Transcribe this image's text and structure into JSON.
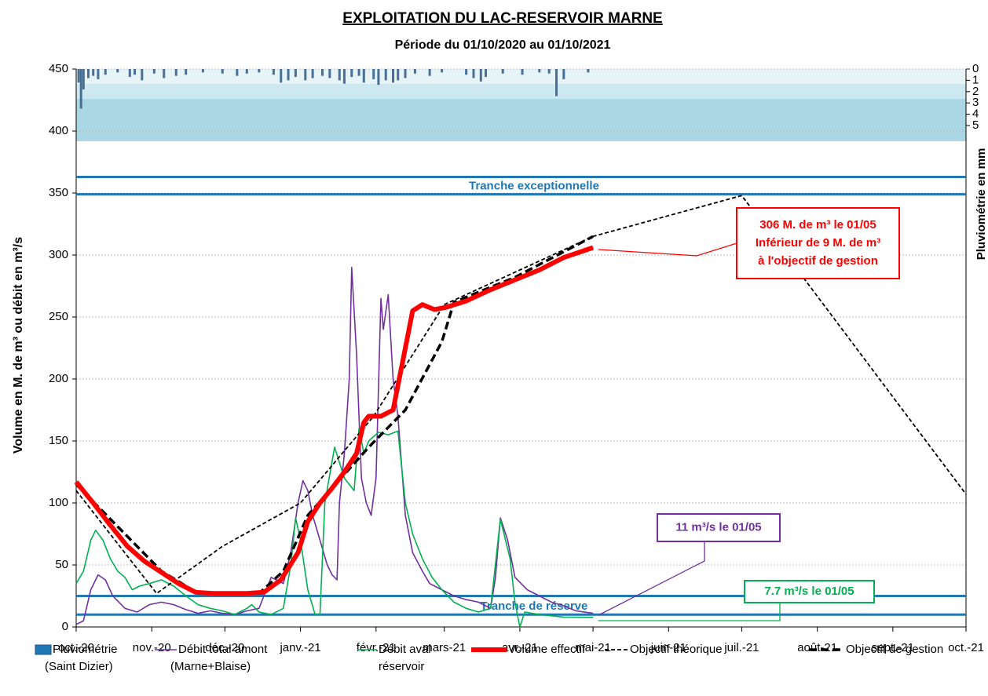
{
  "chart_data": {
    "type": "line",
    "title": "EXPLOITATION  DU  LAC-RESERVOIR  MARNE",
    "subtitle": "Période du 01/10/2020 au 01/10/2021",
    "y_label": "Volume en M. de m³ ou débit en m³/s",
    "y2_label": "Pluviométrie en mm",
    "xlim": [
      0,
      365
    ],
    "xticks": [
      {
        "value": 0,
        "label": "oct.-20"
      },
      {
        "value": 31,
        "label": "nov.-20"
      },
      {
        "value": 61,
        "label": "déc.-20"
      },
      {
        "value": 92,
        "label": "janv.-21"
      },
      {
        "value": 123,
        "label": "févr.-21"
      },
      {
        "value": 151,
        "label": "mars-21"
      },
      {
        "value": 182,
        "label": "avr.-21"
      },
      {
        "value": 212,
        "label": "mai-21"
      },
      {
        "value": 243,
        "label": "juin-21"
      },
      {
        "value": 273,
        "label": "juil.-21"
      },
      {
        "value": 304,
        "label": "août-21"
      },
      {
        "value": 335,
        "label": "sept.-21"
      },
      {
        "value": 365,
        "label": "oct.-21"
      }
    ],
    "ylim": [
      0,
      450
    ],
    "yticks": [
      0,
      50,
      100,
      150,
      200,
      250,
      300,
      350,
      400,
      450
    ],
    "y2lim": [
      0,
      5
    ],
    "y2ticks": [
      0,
      1,
      2,
      3,
      4,
      5
    ],
    "grid": true,
    "reference_lines": [
      {
        "label": "Tranche exceptionnelle",
        "values": [
          349,
          363
        ],
        "color": "#1f77b4"
      },
      {
        "label": "Tranche de réserve",
        "values": [
          10,
          25
        ],
        "color": "#1f77b4"
      }
    ],
    "series": [
      {
        "name": [
          "Pluviométrie",
          "(Saint Dizier)"
        ],
        "kind": "bar",
        "axis": "y2",
        "color": "#4a6f95",
        "x": [
          1,
          2,
          3,
          5,
          7,
          9,
          12,
          17,
          22,
          24,
          27,
          32,
          36,
          41,
          45,
          52,
          60,
          66,
          70,
          75,
          81,
          84,
          87,
          90,
          94,
          97,
          101,
          104,
          108,
          110,
          113,
          116,
          118,
          122,
          124,
          127,
          130,
          132,
          135,
          139,
          145,
          150,
          160,
          163,
          166,
          168,
          175,
          183,
          190,
          194,
          197,
          200,
          210
        ],
        "values": [
          1.2,
          3.5,
          1.8,
          0.8,
          0.6,
          0.9,
          0.5,
          0.3,
          0.7,
          0.5,
          1.0,
          0.4,
          0.8,
          0.6,
          0.5,
          0.3,
          0.4,
          0.6,
          0.4,
          0.3,
          0.5,
          1.2,
          1.0,
          0.7,
          1.0,
          0.8,
          0.6,
          0.8,
          1.0,
          1.3,
          0.7,
          0.6,
          1.2,
          0.9,
          1.4,
          1.0,
          1.2,
          1.0,
          0.8,
          0.4,
          0.6,
          0.3,
          0.5,
          0.8,
          1.1,
          0.7,
          0.4,
          0.5,
          0.3,
          0.4,
          2.4,
          0.9,
          0.3
        ]
      },
      {
        "name": [
          "Débit total amont",
          "(Marne+Blaise)"
        ],
        "kind": "line",
        "color": "#7030a0",
        "width": 1.6,
        "dash": "",
        "x": [
          0,
          3,
          6,
          9,
          12,
          15,
          20,
          25,
          30,
          35,
          40,
          45,
          50,
          55,
          60,
          65,
          70,
          75,
          80,
          85,
          88,
          91,
          93,
          95,
          97,
          100,
          103,
          105,
          107,
          108,
          110,
          112,
          113,
          115,
          117,
          119,
          121,
          123,
          125,
          126,
          128,
          130,
          132,
          135,
          138,
          142,
          145,
          150,
          155,
          160,
          165,
          170,
          172,
          174,
          177,
          180,
          185,
          190,
          195,
          200,
          205,
          212
        ],
        "values": [
          2,
          5,
          30,
          42,
          38,
          25,
          15,
          12,
          18,
          20,
          18,
          14,
          11,
          13,
          11,
          10,
          13,
          15,
          40,
          35,
          60,
          100,
          118,
          110,
          90,
          70,
          50,
          42,
          38,
          100,
          140,
          200,
          290,
          220,
          120,
          100,
          90,
          120,
          265,
          240,
          268,
          200,
          170,
          90,
          60,
          45,
          35,
          30,
          25,
          22,
          20,
          15,
          40,
          88,
          70,
          40,
          30,
          25,
          20,
          17,
          13,
          11
        ]
      },
      {
        "name": [
          "Débit aval",
          "réservoir"
        ],
        "kind": "line",
        "color": "#00b050",
        "width": 1.6,
        "dash": "",
        "x": [
          0,
          3,
          6,
          8,
          11,
          14,
          17,
          20,
          23,
          26,
          30,
          35,
          40,
          45,
          50,
          55,
          60,
          65,
          70,
          72,
          75,
          80,
          85,
          88,
          90,
          92,
          95,
          98,
          100,
          102,
          106,
          110,
          114,
          116,
          118,
          120,
          124,
          128,
          132,
          135,
          138,
          142,
          146,
          150,
          155,
          160,
          165,
          170,
          174,
          178,
          180,
          182,
          184,
          190,
          200,
          212
        ],
        "values": [
          35,
          45,
          70,
          78,
          70,
          55,
          45,
          40,
          30,
          33,
          35,
          38,
          33,
          25,
          18,
          15,
          13,
          10,
          15,
          18,
          12,
          10,
          15,
          50,
          88,
          70,
          30,
          10,
          10,
          100,
          145,
          120,
          110,
          160,
          140,
          150,
          157,
          155,
          158,
          100,
          75,
          55,
          40,
          30,
          20,
          15,
          12,
          15,
          87,
          55,
          20,
          0,
          12,
          10,
          8,
          7.7
        ]
      },
      {
        "name": [
          "Volume effectif"
        ],
        "kind": "line",
        "color": "#ff0000",
        "width": 6,
        "dash": "",
        "x": [
          0,
          7,
          14,
          21,
          28,
          35,
          42,
          49,
          56,
          63,
          70,
          77,
          84,
          91,
          95,
          100,
          105,
          110,
          115,
          118,
          120,
          125,
          130,
          134,
          138,
          142,
          147,
          152,
          160,
          170,
          180,
          190,
          200,
          212
        ],
        "values": [
          117,
          100,
          82,
          65,
          53,
          44,
          35,
          28,
          27,
          27,
          27,
          28,
          38,
          60,
          85,
          100,
          112,
          125,
          140,
          165,
          170,
          170,
          175,
          215,
          255,
          260,
          256,
          258,
          263,
          272,
          280,
          288,
          298,
          306
        ]
      },
      {
        "name": [
          "Objectif théorique"
        ],
        "kind": "line",
        "color": "#000000",
        "width": 1.8,
        "dash": "5 3",
        "x": [
          0,
          33,
          60,
          92,
          122,
          151,
          212,
          273,
          365
        ],
        "values": [
          110,
          27,
          65,
          100,
          170,
          260,
          315,
          348,
          107
        ]
      },
      {
        "name": [
          "Objectif de gestion"
        ],
        "kind": "line",
        "color": "#000000",
        "width": 3.5,
        "dash": "10 5",
        "x": [
          0,
          20,
          35,
          50,
          75,
          85,
          95,
          105,
          120,
          135,
          150,
          155,
          180,
          212
        ],
        "values": [
          115,
          75,
          45,
          27,
          27,
          45,
          90,
          112,
          145,
          175,
          230,
          262,
          282,
          315
        ]
      }
    ],
    "annotations": [
      {
        "lines": [
          "306 M. de m³ le 01/05",
          "Inférieur de 9 M. de m³",
          "à l'objectif de gestion"
        ],
        "color": "#ff0000"
      },
      {
        "lines": [
          "11 m³/s le 01/05"
        ],
        "color": "#7030a0"
      },
      {
        "lines": [
          "7.7 m³/s le 01/05"
        ],
        "color": "#00b050"
      }
    ]
  }
}
